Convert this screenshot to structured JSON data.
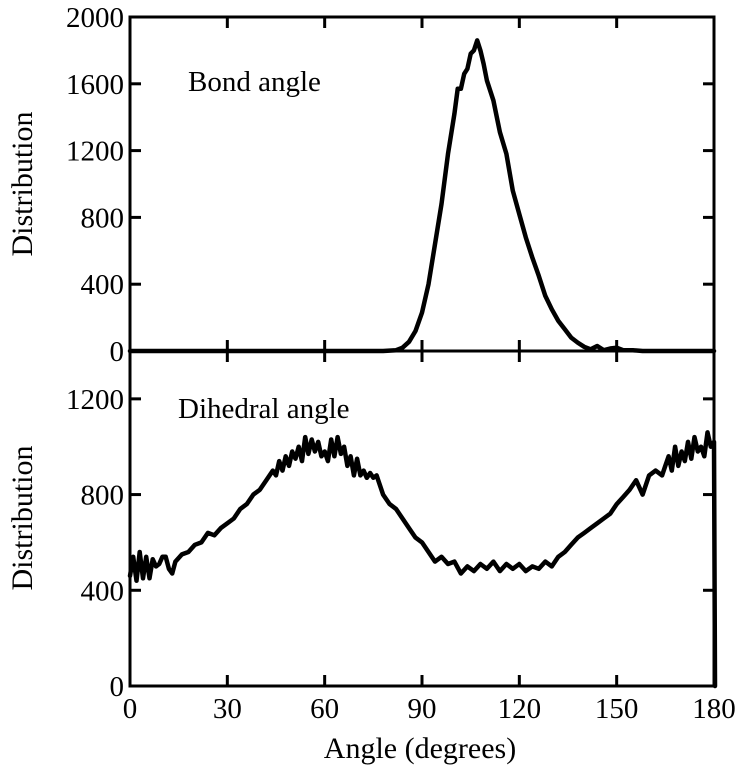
{
  "chart_data": [
    {
      "type": "line",
      "annotation": "Bond angle",
      "ylabel": "Distribution",
      "xlabel": "",
      "xlim": [
        0,
        180
      ],
      "ylim": [
        0,
        2000
      ],
      "yticks": [
        0,
        400,
        800,
        1200,
        1600,
        2000
      ],
      "xticks": [
        0,
        30,
        60,
        90,
        120,
        150,
        180
      ],
      "grid": false,
      "series": [
        {
          "color": "#000000",
          "x": [
            0,
            70,
            78,
            82,
            84,
            86,
            88,
            90,
            92,
            94,
            96,
            98,
            100,
            101,
            102,
            103,
            104,
            105,
            106,
            107,
            108,
            109,
            110,
            112,
            114,
            116,
            118,
            120,
            122,
            124,
            126,
            128,
            130,
            132,
            134,
            136,
            138,
            140,
            142,
            144,
            146,
            148,
            150,
            152,
            155,
            158,
            162,
            166,
            170,
            175,
            180
          ],
          "values": [
            0,
            0,
            0,
            5,
            20,
            55,
            120,
            230,
            400,
            640,
            880,
            1180,
            1420,
            1570,
            1570,
            1660,
            1690,
            1780,
            1800,
            1860,
            1800,
            1720,
            1620,
            1500,
            1310,
            1180,
            960,
            820,
            680,
            560,
            450,
            330,
            250,
            180,
            130,
            80,
            50,
            25,
            10,
            30,
            5,
            15,
            20,
            5,
            5,
            0,
            0,
            0,
            0,
            0,
            0
          ]
        }
      ]
    },
    {
      "type": "line",
      "annotation": "Dihedral angle",
      "ylabel": "Distribution",
      "xlabel": "Angle (degrees)",
      "xlim": [
        0,
        180
      ],
      "ylim": [
        0,
        1400
      ],
      "yticks": [
        0,
        400,
        800,
        1200
      ],
      "xticks": [
        0,
        30,
        60,
        90,
        120,
        150,
        180
      ],
      "xticklabels": [
        "0",
        "30",
        "60",
        "90",
        "120",
        "150",
        "180"
      ],
      "grid": false,
      "series": [
        {
          "color": "#000000",
          "x": [
            0,
            1,
            2,
            3,
            4,
            5,
            6,
            7,
            8,
            9,
            10,
            11,
            12,
            13,
            14,
            16,
            18,
            20,
            22,
            24,
            26,
            28,
            30,
            32,
            34,
            36,
            38,
            40,
            42,
            44,
            45,
            46,
            47,
            48,
            49,
            50,
            51,
            52,
            53,
            54,
            55,
            56,
            57,
            58,
            59,
            60,
            61,
            62,
            63,
            64,
            65,
            66,
            67,
            68,
            69,
            70,
            71,
            72,
            73,
            74,
            75,
            76,
            78,
            80,
            82,
            84,
            86,
            88,
            90,
            92,
            94,
            96,
            98,
            100,
            102,
            104,
            106,
            108,
            110,
            112,
            114,
            116,
            118,
            120,
            122,
            124,
            126,
            128,
            130,
            132,
            134,
            136,
            138,
            140,
            142,
            144,
            146,
            148,
            150,
            152,
            154,
            156,
            158,
            160,
            162,
            164,
            165,
            166,
            167,
            168,
            169,
            170,
            171,
            172,
            173,
            174,
            175,
            176,
            177,
            178,
            179,
            180,
            180.3
          ],
          "values": [
            460,
            540,
            440,
            560,
            450,
            540,
            450,
            530,
            500,
            510,
            540,
            540,
            490,
            470,
            520,
            550,
            560,
            590,
            600,
            640,
            630,
            660,
            680,
            700,
            740,
            760,
            800,
            820,
            860,
            900,
            880,
            940,
            900,
            960,
            920,
            980,
            950,
            1000,
            940,
            1040,
            970,
            1030,
            980,
            1020,
            960,
            980,
            940,
            1030,
            960,
            1040,
            970,
            1000,
            920,
            960,
            880,
            950,
            880,
            900,
            870,
            890,
            870,
            880,
            800,
            760,
            740,
            700,
            660,
            620,
            600,
            560,
            520,
            540,
            510,
            520,
            470,
            500,
            480,
            510,
            490,
            520,
            480,
            510,
            490,
            510,
            480,
            500,
            490,
            520,
            500,
            540,
            560,
            590,
            620,
            640,
            660,
            680,
            700,
            720,
            760,
            790,
            820,
            860,
            800,
            880,
            900,
            880,
            920,
            960,
            900,
            1000,
            920,
            980,
            940,
            1020,
            950,
            1040,
            980,
            1000,
            960,
            1060,
            1000,
            1020,
            0
          ]
        }
      ]
    }
  ]
}
